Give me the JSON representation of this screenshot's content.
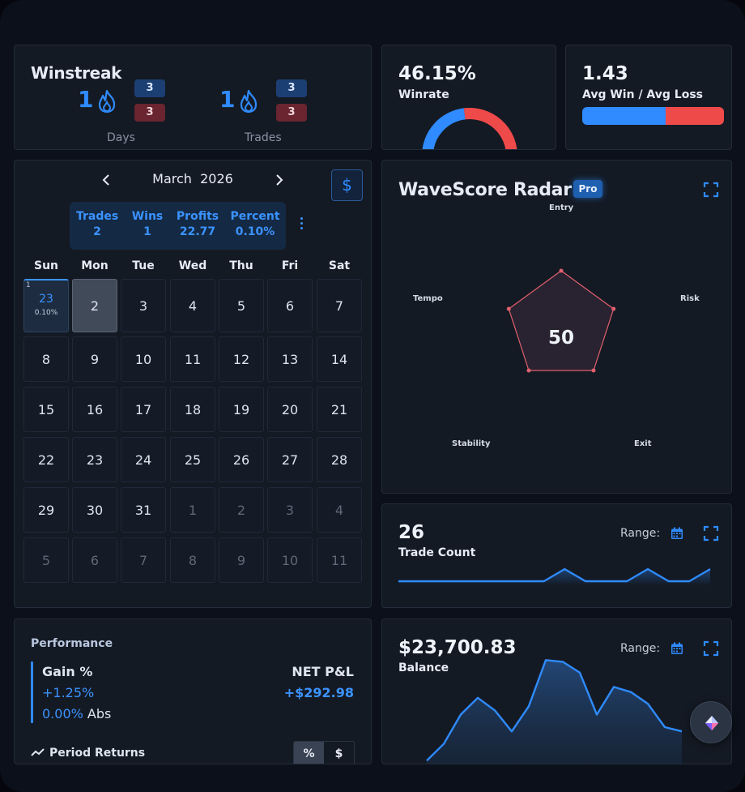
{
  "winstreak": {
    "title": "Winstreak",
    "days": {
      "value": "1",
      "win_badge": "3",
      "loss_badge": "3",
      "label": "Days"
    },
    "trades": {
      "value": "1",
      "win_badge": "3",
      "loss_badge": "3",
      "label": "Trades"
    }
  },
  "winrate": {
    "value": "46.15%",
    "label": "Winrate",
    "fraction": 0.4615,
    "win_color": "#2f8bff",
    "loss_color": "#ef4a4a"
  },
  "avg_win_loss": {
    "value": "1.43",
    "label": "Avg Win / Avg Loss",
    "win_fraction": 0.588
  },
  "calendar": {
    "prev_icon": "chevron-left-icon",
    "next_icon": "chevron-right-icon",
    "month": "March",
    "year": "2026",
    "currency_button": "$",
    "stats": {
      "trades": {
        "label": "Trades",
        "value": "2"
      },
      "wins": {
        "label": "Wins",
        "value": "1"
      },
      "profits": {
        "label": "Profits",
        "value": "22.77"
      },
      "percent": {
        "label": "Percent",
        "value": "0.10%"
      }
    },
    "weekdays": [
      "Sun",
      "Mon",
      "Tue",
      "Wed",
      "Thu",
      "Fri",
      "Sat"
    ],
    "active_day": {
      "count": "1",
      "day": "23",
      "percent": "0.10%"
    },
    "days": [
      "2",
      "3",
      "4",
      "5",
      "6",
      "7",
      "8",
      "9",
      "10",
      "11",
      "12",
      "13",
      "14",
      "15",
      "16",
      "17",
      "18",
      "19",
      "20",
      "21",
      "22",
      "23",
      "24",
      "25",
      "26",
      "27",
      "28",
      "29",
      "30",
      "31",
      "1",
      "2",
      "3",
      "4",
      "5",
      "6",
      "7",
      "8",
      "9",
      "10",
      "11"
    ]
  },
  "radar": {
    "title": "WaveScore Radar",
    "badge": "Pro",
    "score": "50",
    "axes": [
      "Entry",
      "Risk",
      "Exit",
      "Stability",
      "Tempo"
    ],
    "values": [
      50,
      50,
      50,
      50,
      50
    ],
    "max": 100
  },
  "trade_count": {
    "value": "26",
    "label": "Trade Count",
    "range_label": "Range:",
    "series": [
      0,
      0,
      0,
      0,
      0,
      0,
      0,
      0,
      1,
      0,
      0,
      0,
      1,
      0,
      0,
      1
    ]
  },
  "performance": {
    "title": "Performance",
    "gain_title": "Gain %",
    "gain_value": "+1.25%",
    "abs_value": "0.00%",
    "abs_label": "Abs",
    "net_title": "NET P&L",
    "net_value": "+$292.98",
    "period_title": "Period Returns",
    "toggle_percent": "%",
    "toggle_dollar": "$"
  },
  "balance": {
    "value": "$23,700.83",
    "label": "Balance",
    "range_label": "Range:",
    "series": [
      20,
      40,
      75,
      95,
      80,
      55,
      85,
      140,
      138,
      125,
      75,
      108,
      102,
      88,
      60,
      55
    ]
  },
  "colors": {
    "accent": "#2f8bff",
    "loss": "#ef4a4a",
    "radar_line": "#e0606e"
  }
}
